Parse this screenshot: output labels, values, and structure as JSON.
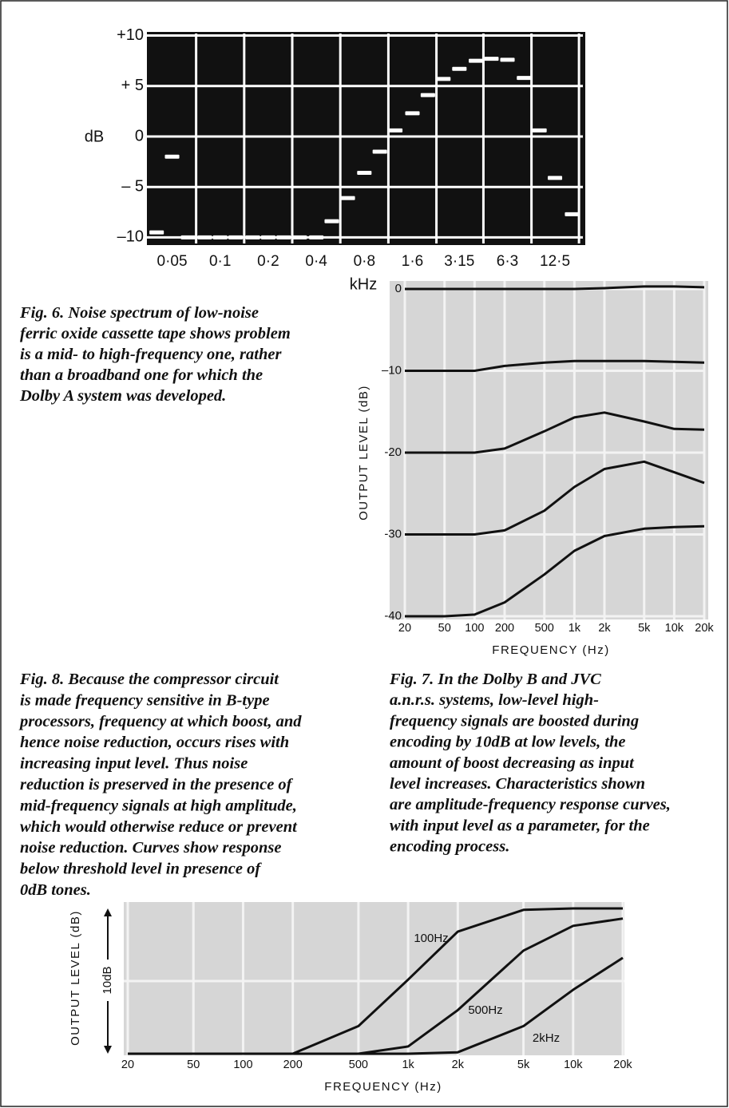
{
  "chart_data": [
    {
      "type": "step",
      "background": "#111111",
      "color": "#ffffff",
      "grid": true,
      "xscale": "log",
      "y_label": "dB",
      "x_label": "kHz",
      "x": [
        0.04,
        0.05,
        0.063,
        0.08,
        0.1,
        0.125,
        0.16,
        0.2,
        0.25,
        0.315,
        0.4,
        0.5,
        0.63,
        0.8,
        1.0,
        1.25,
        1.6,
        2.0,
        2.5,
        3.15,
        4,
        5,
        6.3,
        8,
        10,
        12.5,
        16
      ],
      "values": [
        -9.5,
        -2,
        -10,
        -10,
        -10,
        -10,
        -10,
        -10,
        -10,
        -10,
        -10,
        -8.4,
        -6.1,
        -3.6,
        -1.5,
        0.6,
        2.3,
        4.1,
        5.7,
        6.7,
        7.5,
        7.7,
        7.6,
        5.8,
        0.6,
        -4.1,
        -7.7
      ],
      "xlim": [
        0.036,
        18.7
      ],
      "xticks": [
        {
          "value": 0.05,
          "label": "0·05"
        },
        {
          "value": 0.1,
          "label": "0·1"
        },
        {
          "value": 0.2,
          "label": "0·2"
        },
        {
          "value": 0.4,
          "label": "0·4"
        },
        {
          "value": 0.8,
          "label": "0·8"
        },
        {
          "value": 1.6,
          "label": "1·6"
        },
        {
          "value": 3.15,
          "label": "3·15"
        },
        {
          "value": 6.3,
          "label": "6·3"
        },
        {
          "value": 12.5,
          "label": "12·5"
        }
      ],
      "ylim": [
        -10.6,
        10.2
      ],
      "yticks": [
        {
          "value": 10,
          "label": "+10"
        },
        {
          "value": 5,
          "label": "+ 5"
        },
        0,
        {
          "value": -5,
          "label": "– 5"
        },
        {
          "value": -10,
          "label": "–10"
        }
      ],
      "caption": [
        "Fig. 6. Noise spectrum of low-noise",
        "ferric oxide cassette tape shows problem",
        "is a mid- to high-frequency one, rather",
        "than a broadband one for which the",
        "Dolby A system was developed."
      ]
    },
    {
      "type": "line",
      "background": "#d6d6d6",
      "grid": true,
      "xscale": "log",
      "y_label": "OUTPUT LEVEL (dB)",
      "x_label": "FREQUENCY (Hz)",
      "x": [
        20,
        50,
        100,
        200,
        500,
        1000,
        2000,
        5000,
        10000,
        20000
      ],
      "series": [
        {
          "color": "#111111",
          "values": [
            0,
            0,
            0,
            0,
            0,
            0,
            0.1,
            0.3,
            0.3,
            0.2
          ]
        },
        {
          "color": "#111111",
          "values": [
            -10,
            -10,
            -10,
            -9.4,
            -9,
            -8.8,
            -8.8,
            -8.8,
            -8.9,
            -9
          ]
        },
        {
          "color": "#111111",
          "values": [
            -20,
            -20,
            -20,
            -19.5,
            -17.4,
            -15.7,
            -15.1,
            -16.2,
            -17.1,
            -17.2
          ]
        },
        {
          "color": "#111111",
          "values": [
            -30,
            -30,
            -30,
            -29.5,
            -27.1,
            -24.2,
            -22,
            -21.1,
            -22.4,
            -23.7
          ]
        },
        {
          "color": "#111111",
          "values": [
            -40,
            -40,
            -39.8,
            -38.3,
            -34.9,
            -32,
            -30.2,
            -29.3,
            -29.1,
            -29
          ]
        }
      ],
      "xlim": [
        20,
        20000
      ],
      "xticks": [
        20,
        50,
        100,
        200,
        500,
        {
          "value": 1000,
          "label": "1k"
        },
        {
          "value": 2000,
          "label": "2k"
        },
        {
          "value": 5000,
          "label": "5k"
        },
        {
          "value": 10000,
          "label": "10k"
        },
        {
          "value": 20000,
          "label": "20k"
        }
      ],
      "ylim": [
        -40,
        0
      ],
      "yticks": [
        0,
        {
          "value": -10,
          "label": "–10"
        },
        {
          "value": -20,
          "label": "-20"
        },
        {
          "value": -30,
          "label": "-30"
        },
        {
          "value": -40,
          "label": "-40"
        }
      ],
      "caption": [
        "Fig. 7. In the Dolby B and JVC",
        "a.n.r.s. systems, low-level high-",
        "frequency signals are boosted during",
        "encoding by 10dB at low levels, the",
        "amount of boost decreasing as input",
        "level increases. Characteristics shown",
        "are amplitude-frequency response curves,",
        "with input level as a parameter, for the",
        "encoding process."
      ]
    },
    {
      "type": "line",
      "background": "#d6d6d6",
      "grid": true,
      "xscale": "log",
      "y_label": "OUTPUT LEVEL (dB)",
      "y_scale_label": "10dB",
      "x_label": "FREQUENCY (Hz)",
      "x": [
        20,
        50,
        100,
        200,
        500,
        1000,
        2000,
        5000,
        10000,
        20000
      ],
      "series": [
        {
          "name": "100Hz",
          "color": "#111111",
          "values": [
            -10,
            -10,
            -10,
            -10,
            -8.1,
            -4.9,
            -1.6,
            -0.1,
            0,
            0
          ]
        },
        {
          "name": "500Hz",
          "color": "#111111",
          "values": [
            -10,
            -10,
            -10,
            -10,
            -10,
            -9.5,
            -7,
            -2.9,
            -1.2,
            -0.7
          ]
        },
        {
          "name": "2kHz",
          "color": "#111111",
          "values": [
            -10,
            -10,
            -10,
            -10,
            -10,
            -10,
            -9.9,
            -8.1,
            -5.6,
            -3.4
          ]
        }
      ],
      "xlim": [
        20,
        20000
      ],
      "xticks": [
        20,
        50,
        100,
        200,
        500,
        {
          "value": 1000,
          "label": "1k"
        },
        {
          "value": 2000,
          "label": "2k"
        },
        {
          "value": 5000,
          "label": "5k"
        },
        {
          "value": 10000,
          "label": "10k"
        },
        {
          "value": 20000,
          "label": "20k"
        }
      ],
      "ylim": [
        -10,
        0
      ],
      "caption": [
        "Fig. 8. Because the compressor circuit",
        "is made frequency sensitive in B-type",
        "processors, frequency at which boost, and",
        "hence noise reduction, occurs rises with",
        "increasing input level. Thus noise",
        "reduction is preserved in the presence of",
        "mid-frequency signals at high amplitude,",
        "which would otherwise reduce or prevent",
        "noise reduction. Curves show response",
        "below threshold level in presence of",
        "0dB tones."
      ]
    }
  ]
}
